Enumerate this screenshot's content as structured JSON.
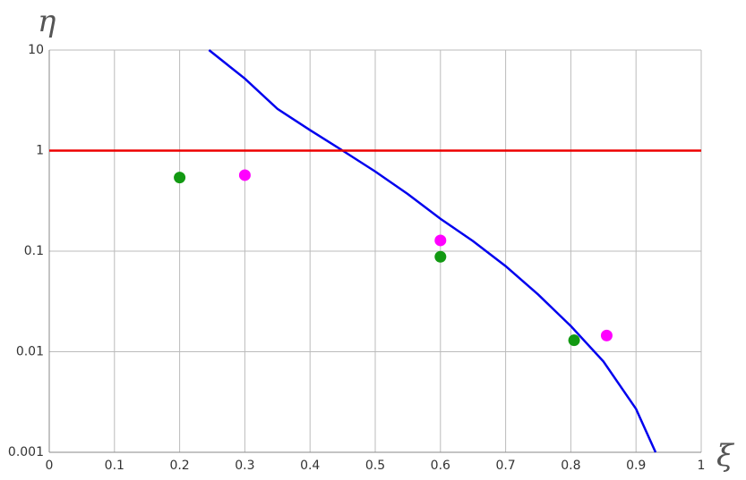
{
  "chart_data": {
    "type": "line",
    "x_label": "ξ",
    "y_label": "η",
    "xlim": [
      0,
      1
    ],
    "ylim": [
      0.001,
      10
    ],
    "log_y": true,
    "grid": true,
    "xticks": [
      0,
      0.1,
      0.2,
      0.3,
      0.4,
      0.5,
      0.6,
      0.7,
      0.8,
      0.9,
      1
    ],
    "yticks": [
      0.001,
      0.01,
      0.1,
      1,
      10
    ],
    "series": [
      {
        "mode": "line",
        "color": "#0000ee",
        "x": [
          0.245,
          0.3,
          0.35,
          0.4,
          0.45,
          0.5,
          0.55,
          0.6,
          0.65,
          0.7,
          0.75,
          0.8,
          0.85,
          0.9,
          0.93
        ],
        "values": [
          10,
          5.2,
          2.6,
          1.6,
          1,
          0.62,
          0.37,
          0.21,
          0.126,
          0.071,
          0.037,
          0.018,
          0.008,
          0.0027,
          0.001
        ]
      },
      {
        "mode": "line",
        "color": "#ee0000",
        "x": [
          0,
          1
        ],
        "values": [
          1,
          1
        ]
      },
      {
        "mode": "points",
        "color": "#129912",
        "x": [
          0.2,
          0.6,
          0.805
        ],
        "values": [
          0.54,
          0.088,
          0.013
        ]
      },
      {
        "mode": "points",
        "color": "#ff00ff",
        "x": [
          0.3,
          0.6,
          0.855
        ],
        "values": [
          0.57,
          0.128,
          0.0145
        ]
      }
    ]
  }
}
